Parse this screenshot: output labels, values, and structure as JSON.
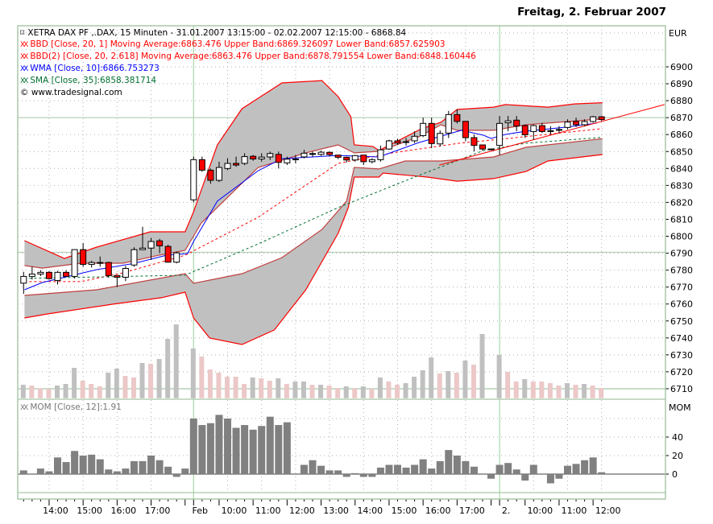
{
  "header": {
    "date": "Freitag, 2. Februar 2007"
  },
  "legend": {
    "title_icon": "candlestick-icon",
    "title": "XETRA DAX PF ,.DAX, 15 Minuten - 31.01.2007 13:15:00 - 02.02.2007 12:15:00 - 6868.84",
    "bbd": "BBD [Close, 20, 1] Moving Average:6863.476 Upper Band:6869.326097 Lower Band:6857.625903",
    "bbd2": "BBD(2) [Close, 20, 2.618] Moving Average:6863.476 Upper Band:6878.791554 Lower Band:6848.160446",
    "wma": "WMA [Close, 10]:6866.753273",
    "sma": "SMA [Close, 35]:6858.381714",
    "copyright": "© www.tradesignal.com",
    "series_icon": "XX"
  },
  "colors": {
    "up": "#ffffff",
    "down": "#ff0000",
    "band_fill": "#c0c0c0",
    "outer_band": "#ff0000",
    "inner_band": "#c04040",
    "wma": "#0000ff",
    "sma": "#006f30",
    "ma": "#ff0000",
    "grid": "#a8c8a8",
    "volume_up": "#c0c0c0",
    "volume_down": "#ecc8c8",
    "momentum": "#808080"
  },
  "chart_data": [
    {
      "type": "candlestick",
      "title": "XETRA DAX PF ,.DAX, 15 Minuten",
      "y_axis_label": "EUR",
      "ylim": [
        6705,
        6925
      ],
      "y_ticks": [
        6900,
        6890,
        6880,
        6870,
        6860,
        6850,
        6840,
        6830,
        6820,
        6810,
        6800,
        6790,
        6780,
        6770,
        6760,
        6750,
        6740,
        6730,
        6720,
        6710
      ],
      "x_tick_labels": [
        {
          "i": 3,
          "label": "14:00"
        },
        {
          "i": 7,
          "label": "15:00"
        },
        {
          "i": 11,
          "label": "16:00"
        },
        {
          "i": 15,
          "label": "17:00"
        },
        {
          "i": 20,
          "label": "Feb"
        },
        {
          "i": 24,
          "label": "10:00"
        },
        {
          "i": 28,
          "label": "11:00"
        },
        {
          "i": 32,
          "label": "12:00"
        },
        {
          "i": 36,
          "label": "13:00"
        },
        {
          "i": 40,
          "label": "14:00"
        },
        {
          "i": 44,
          "label": "15:00"
        },
        {
          "i": 48,
          "label": "16:00"
        },
        {
          "i": 52,
          "label": "17:00"
        },
        {
          "i": 56,
          "label": "2."
        },
        {
          "i": 60,
          "label": "10:00"
        },
        {
          "i": 64,
          "label": "11:00"
        },
        {
          "i": 68,
          "label": "12:00"
        }
      ],
      "day_separators": [
        20,
        56
      ],
      "reference_levels": [
        6870,
        6790.5
      ],
      "ohlc": [
        [
          6772.3,
          6779,
          6766,
          6776.3
        ],
        [
          6776.3,
          6782,
          6774.5,
          6777.7
        ],
        [
          6777.7,
          6780,
          6776.5,
          6778.7
        ],
        [
          6778.7,
          6779.5,
          6774.5,
          6775.0
        ],
        [
          6773.9,
          6779.5,
          6771.5,
          6778.7
        ],
        [
          6778.7,
          6780,
          6776,
          6776.3
        ],
        [
          6776.3,
          6792.1,
          6775,
          6792.1
        ],
        [
          6792.1,
          6796,
          6782,
          6783.4
        ],
        [
          6783.4,
          6785.5,
          6781.5,
          6784.5
        ],
        [
          6784.5,
          6788,
          6782,
          6784.5
        ],
        [
          6784.5,
          6785,
          6775.5,
          6776.8
        ],
        [
          6776.8,
          6777,
          6770,
          6775.8
        ],
        [
          6775.8,
          6782.5,
          6773.5,
          6781
        ],
        [
          6783,
          6793.5,
          6782,
          6792.1
        ],
        [
          6792.1,
          6805.6,
          6792,
          6793
        ],
        [
          6793,
          6799,
          6786,
          6796.9
        ],
        [
          6797.3,
          6798.5,
          6790,
          6794.3
        ],
        [
          6794,
          6795,
          6784.5,
          6784.7
        ],
        [
          6784.7,
          6791,
          6784,
          6790.2
        ],
        null,
        [
          6821.5,
          6847,
          6820,
          6845.2
        ],
        [
          6845.2,
          6847,
          6838,
          6839
        ],
        [
          6839,
          6840,
          6831,
          6833
        ],
        [
          6833,
          6844,
          6832,
          6840.6
        ],
        [
          6840,
          6846,
          6839,
          6843
        ],
        [
          6843,
          6847,
          6841,
          6842
        ],
        [
          6843,
          6849,
          6842,
          6847
        ],
        [
          6847.2,
          6848,
          6844.5,
          6845.6
        ],
        [
          6845.6,
          6849,
          6844,
          6846.7
        ],
        [
          6846.8,
          6850,
          6845,
          6848.8
        ],
        [
          6848.3,
          6850,
          6840,
          6843.6
        ],
        [
          6843.3,
          6847,
          6842,
          6845.5
        ],
        [
          6845.6,
          6848,
          6843,
          6845.6
        ],
        [
          6846.8,
          6851,
          6846,
          6849
        ],
        [
          6848.8,
          6850,
          6847,
          6848.8
        ],
        [
          6848.3,
          6850.5,
          6847.5,
          6849.6
        ],
        [
          6849.5,
          6850,
          6847,
          6848.2
        ],
        [
          6847.9,
          6848,
          6845.5,
          6846.6
        ],
        [
          6846.6,
          6847,
          6843.5,
          6845
        ],
        [
          6845,
          6848,
          6844,
          6847.6
        ],
        [
          6847.9,
          6848,
          6842,
          6844
        ],
        [
          6844,
          6846,
          6843,
          6845.2
        ],
        [
          6845.2,
          6853.5,
          6844,
          6851
        ],
        [
          6851.5,
          6857,
          6851,
          6856.3
        ],
        [
          6856.3,
          6857.5,
          6854,
          6855
        ],
        [
          6855.8,
          6858,
          6853.5,
          6855.8
        ],
        [
          6856.3,
          6862,
          6855,
          6859
        ],
        [
          6859.4,
          6870,
          6858.5,
          6866.6
        ],
        [
          6866.6,
          6870,
          6852,
          6854.7
        ],
        [
          6854.5,
          6862.5,
          6853,
          6860.7
        ],
        [
          6860.9,
          6874,
          6858,
          6871.8
        ],
        [
          6871.8,
          6875,
          6866.5,
          6867.8
        ],
        [
          6867.8,
          6868,
          6856,
          6858.2
        ],
        [
          6858.2,
          6860,
          6850,
          6853.6
        ],
        [
          6853.9,
          6854,
          6850.5,
          6851.5
        ],
        [
          6851.5,
          6851.8,
          6851.2,
          6851.5
        ],
        [
          6853.6,
          6871,
          6848,
          6866.6
        ],
        [
          6867,
          6871,
          6862,
          6868.1
        ],
        [
          6868.5,
          6871,
          6862,
          6865
        ],
        [
          6865.3,
          6866,
          6858,
          6859.9
        ],
        [
          6861.8,
          6866,
          6857,
          6865.3
        ],
        [
          6865.3,
          6867,
          6861,
          6861.8
        ],
        [
          6862.3,
          6865,
          6860,
          6862.3
        ],
        [
          6863,
          6865,
          6861,
          6863
        ],
        [
          6864.2,
          6869,
          6863,
          6867.4
        ],
        [
          6867.7,
          6870,
          6864.5,
          6865.8
        ],
        [
          6865.8,
          6869,
          6865,
          6867.7
        ],
        [
          6867.7,
          6871,
          6867,
          6870.5
        ],
        [
          6870.5,
          6871,
          6868,
          6868.84
        ]
      ],
      "bands": {
        "upper2": [
          [
            0.1,
            6797.4
          ],
          [
            4.8,
            6786.9
          ],
          [
            8.6,
            6793.6
          ],
          [
            14.9,
            6802.6
          ],
          [
            19.0,
            6802.6
          ],
          [
            20.0,
            6814.5
          ],
          [
            22.8,
            6853.9
          ],
          [
            25.7,
            6875.3
          ],
          [
            30.4,
            6890.5
          ],
          [
            35.1,
            6891.9
          ],
          [
            37.0,
            6882.4
          ],
          [
            38.5,
            6870.5
          ],
          [
            38.9,
            6853.9
          ],
          [
            41.1,
            6853.0
          ],
          [
            41.8,
            6850.6
          ],
          [
            46.8,
            6863.4
          ],
          [
            49.1,
            6867.2
          ],
          [
            51.0,
            6874.8
          ],
          [
            55.3,
            6876.2
          ],
          [
            56.7,
            6877.7
          ],
          [
            61.7,
            6876.2
          ],
          [
            64.8,
            6878.1
          ],
          [
            68.1,
            6878.8
          ]
        ],
        "upper1": [
          [
            0.1,
            6782.7
          ],
          [
            2.2,
            6781.2
          ],
          [
            6.7,
            6784.1
          ],
          [
            11.7,
            6784.1
          ],
          [
            15.9,
            6788.8
          ],
          [
            19.0,
            6791.7
          ],
          [
            20.9,
            6807.8
          ],
          [
            27.6,
            6840.6
          ],
          [
            33.2,
            6849.2
          ],
          [
            37.0,
            6853.9
          ],
          [
            38.9,
            6849.2
          ],
          [
            41.8,
            6850.1
          ],
          [
            46.5,
            6858.7
          ],
          [
            49.1,
            6865.8
          ],
          [
            51.0,
            6862.5
          ],
          [
            55.3,
            6862.5
          ],
          [
            59.1,
            6865.8
          ],
          [
            68.1,
            6869.3
          ]
        ],
        "lower1": [
          [
            0.1,
            6765.1
          ],
          [
            8.6,
            6768.4
          ],
          [
            19.0,
            6777.9
          ],
          [
            20.0,
            6772.2
          ],
          [
            25.7,
            6777.9
          ],
          [
            30.4,
            6787.4
          ],
          [
            35.1,
            6804.0
          ],
          [
            38.0,
            6820.7
          ],
          [
            38.9,
            6840.6
          ],
          [
            41.8,
            6839.7
          ],
          [
            44.9,
            6844.4
          ],
          [
            49.1,
            6844.4
          ],
          [
            55.3,
            6846.8
          ],
          [
            59.1,
            6852.5
          ],
          [
            68.1,
            6857.6
          ]
        ],
        "lower2": [
          [
            0.1,
            6751.8
          ],
          [
            2.9,
            6754.2
          ],
          [
            10.5,
            6759.9
          ],
          [
            16.2,
            6763.7
          ],
          [
            19.0,
            6767.0
          ],
          [
            20.0,
            6751.8
          ],
          [
            21.9,
            6739.9
          ],
          [
            25.7,
            6736.1
          ],
          [
            29.5,
            6744.7
          ],
          [
            33.2,
            6768.4
          ],
          [
            37.0,
            6801.7
          ],
          [
            38.2,
            6816.9
          ],
          [
            38.9,
            6834.9
          ],
          [
            41.8,
            6834.9
          ],
          [
            42.3,
            6837.3
          ],
          [
            47.5,
            6834.9
          ],
          [
            51.0,
            6832.5
          ],
          [
            55.3,
            6834.0
          ],
          [
            59.1,
            6838.2
          ],
          [
            61.7,
            6844.4
          ],
          [
            68.1,
            6848.2
          ]
        ],
        "ma": [
          [
            0.1,
            6773.2
          ],
          [
            6.7,
            6773.2
          ],
          [
            11.7,
            6778.4
          ],
          [
            19.0,
            6788.8
          ],
          [
            27.6,
            6811.2
          ],
          [
            37.0,
            6843.0
          ],
          [
            43.4,
            6849.2
          ],
          [
            51.3,
            6854.9
          ],
          [
            56.0,
            6857.2
          ],
          [
            68.1,
            6863.5
          ]
        ],
        "wma": [
          [
            0.1,
            6768.4
          ],
          [
            2.2,
            6772.7
          ],
          [
            8.6,
            6780.3
          ],
          [
            13.1,
            6784.1
          ],
          [
            16.8,
            6788.8
          ],
          [
            19.3,
            6789.8
          ],
          [
            20.0,
            6796.9
          ],
          [
            22.8,
            6820.7
          ],
          [
            27.6,
            6838.7
          ],
          [
            30.4,
            6845.8
          ],
          [
            37.0,
            6847.7
          ],
          [
            41.8,
            6846.8
          ],
          [
            46.5,
            6855.3
          ],
          [
            51.5,
            6862.5
          ],
          [
            54.1,
            6859.6
          ],
          [
            55.0,
            6857.7
          ],
          [
            56.7,
            6860.1
          ],
          [
            59.1,
            6862.0
          ],
          [
            63.9,
            6864.4
          ],
          [
            67.4,
            6866.75
          ]
        ],
        "sma": [
          [
            0.1,
            6775.1
          ],
          [
            19.0,
            6777.0
          ],
          [
            27.6,
            6795.5
          ],
          [
            37.0,
            6816.9
          ],
          [
            46.5,
            6835.9
          ],
          [
            54.1,
            6850.6
          ],
          [
            59.1,
            6854.9
          ],
          [
            68.1,
            6858.4
          ]
        ]
      },
      "trendline": [
        [
          48.9,
          6842.0
        ],
        [
          75.4,
          6877.7
        ]
      ],
      "volume_relative": [
        16.7,
        15.7,
        12.3,
        11.7,
        15.7,
        17.7,
        37.7,
        21.7,
        17.7,
        14.7,
        31.7,
        36.7,
        27.7,
        25.7,
        43.7,
        42.7,
        48.7,
        73.7,
        91.7,
        null,
        61.7,
        51.7,
        35.7,
        31.7,
        26.7,
        26.7,
        17.7,
        25.7,
        24.7,
        21.7,
        24.7,
        17.7,
        20.7,
        20.7,
        16.7,
        16.7,
        15.7,
        12.7,
        14.7,
        12.7,
        14.7,
        11.7,
        25.7,
        20.7,
        16.7,
        18.7,
        26.7,
        34.7,
        50.7,
        30.7,
        33.7,
        31.7,
        46.7,
        41.7,
        79.7,
        null,
        53.7,
        32.7,
        20.7,
        23.7,
        20.7,
        20.7,
        18.7,
        15.7,
        18.7,
        16.7,
        17.7,
        15.7,
        12.7
      ],
      "volume_color": [
        "g",
        "p",
        "p",
        "p",
        "g",
        "g",
        "g",
        "p",
        "p",
        "p",
        "g",
        "g",
        "p",
        "p",
        "g",
        "p",
        "g",
        "g",
        "g",
        null,
        "g",
        "p",
        "p",
        "p",
        "p",
        "p",
        "p",
        "g",
        "p",
        "p",
        "g",
        "p",
        "g",
        "g",
        "p",
        "g",
        "p",
        "p",
        "g",
        "p",
        "g",
        "p",
        "g",
        "p",
        "p",
        "g",
        "g",
        "g",
        "g",
        "p",
        "g",
        "p",
        "g",
        "p",
        "g",
        null,
        "g",
        "p",
        "p",
        "g",
        "p",
        "p",
        "p",
        "p",
        "g",
        "p",
        "g",
        "p",
        "p"
      ]
    },
    {
      "type": "bar",
      "title": "MOM [Close, 12]:1.91",
      "y_axis_label": "MOM",
      "ylim": [
        -20,
        65
      ],
      "y_ticks": [
        40,
        20,
        0
      ],
      "values": [
        4,
        0,
        6,
        3,
        18,
        13,
        25,
        20,
        21,
        16,
        5,
        3,
        6,
        14,
        14,
        20,
        15,
        8,
        -3,
        6,
        60,
        53,
        55,
        64,
        60,
        50,
        53,
        48,
        52,
        62,
        53,
        56,
        0,
        10,
        15,
        9,
        4,
        4,
        -3,
        1,
        -3,
        -3,
        7,
        10,
        10,
        7,
        10,
        16,
        6,
        14,
        26,
        20,
        14,
        8,
        0,
        -5,
        10,
        12,
        5,
        -7,
        10,
        0,
        -10,
        -5,
        9,
        11,
        15,
        18,
        2
      ]
    }
  ]
}
